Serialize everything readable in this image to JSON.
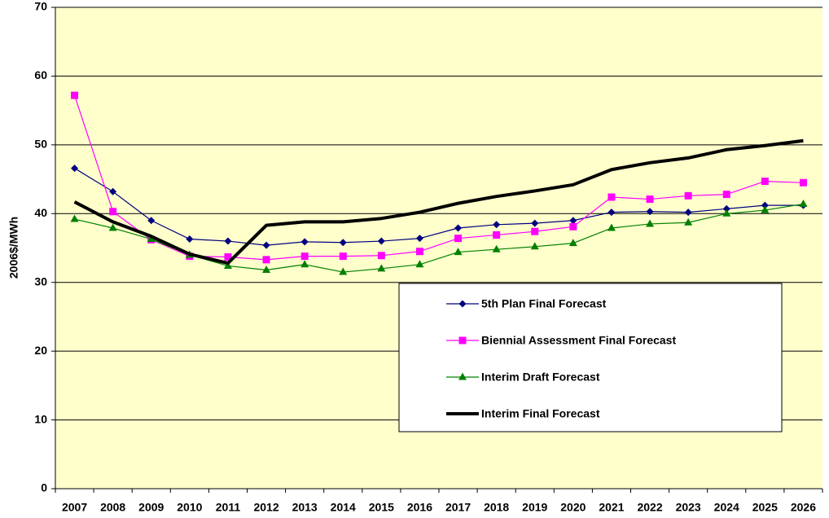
{
  "chart_data": {
    "type": "line",
    "y_label": "2006$/MWh",
    "categories": [
      "2007",
      "2008",
      "2009",
      "2010",
      "2011",
      "2012",
      "2013",
      "2014",
      "2015",
      "2016",
      "2017",
      "2018",
      "2019",
      "2020",
      "2021",
      "2022",
      "2023",
      "2024",
      "2025",
      "2026"
    ],
    "series": [
      {
        "name": "5th Plan Final Forecast",
        "color": "#000080",
        "marker": "diamond",
        "width": 1.2,
        "values": [
          46.6,
          43.2,
          39.0,
          36.3,
          36.0,
          35.4,
          35.9,
          35.8,
          36.0,
          36.4,
          37.9,
          38.4,
          38.6,
          39.0,
          40.2,
          40.3,
          40.2,
          40.7,
          41.2,
          41.2
        ]
      },
      {
        "name": "Biennial Assessment Final Forecast",
        "color": "#ff00ff",
        "marker": "square",
        "width": 1.2,
        "values": [
          57.2,
          40.3,
          36.2,
          33.8,
          33.7,
          33.3,
          33.8,
          33.8,
          33.9,
          34.5,
          36.4,
          36.9,
          37.4,
          38.1,
          42.4,
          42.1,
          42.6,
          42.8,
          44.7,
          44.5
        ]
      },
      {
        "name": "Interim Draft Forecast",
        "color": "#008000",
        "marker": "triangle",
        "width": 1.2,
        "values": [
          39.2,
          37.9,
          36.3,
          34.0,
          32.4,
          31.8,
          32.6,
          31.5,
          32.0,
          32.6,
          34.4,
          34.8,
          35.2,
          35.7,
          37.9,
          38.5,
          38.7,
          40.0,
          40.5,
          41.4
        ]
      },
      {
        "name": "Interim Final Forecast",
        "color": "#000000",
        "marker": "none",
        "width": 4,
        "values": [
          41.7,
          38.8,
          36.7,
          34.1,
          32.8,
          38.3,
          38.8,
          38.8,
          39.3,
          40.2,
          41.5,
          42.5,
          43.3,
          44.2,
          46.4,
          47.4,
          48.1,
          49.3,
          49.9,
          50.6
        ]
      }
    ],
    "ylim": [
      0,
      70
    ],
    "yticks": [
      0,
      10,
      20,
      30,
      40,
      50,
      60,
      70
    ],
    "grid": true,
    "plot_background": "#ffffcc",
    "legend": "lower right"
  }
}
